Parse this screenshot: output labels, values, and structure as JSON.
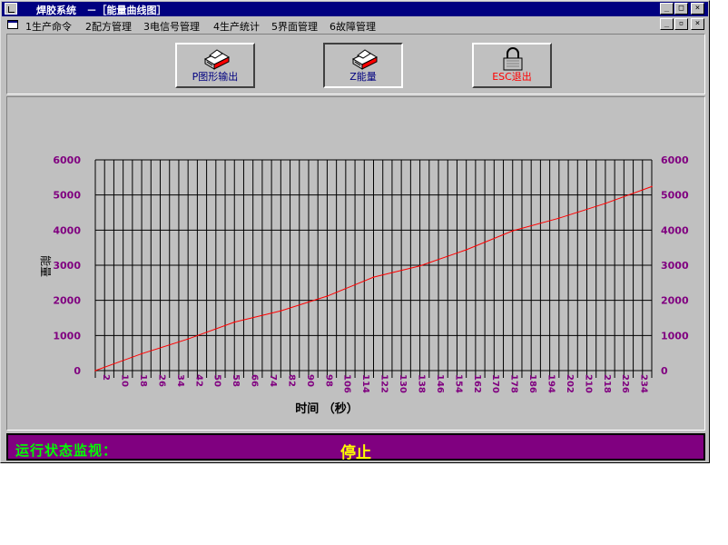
{
  "window": {
    "app_title": "焊胶系统",
    "doc_title": "－［能量曲线图］",
    "caption_buttons": [
      "_",
      "□",
      "×"
    ],
    "doc_buttons": [
      "_",
      "▫",
      "×"
    ]
  },
  "menu": [
    "1生产命令",
    "2配方管理",
    "3电信号管理",
    "4生产统计",
    "5界面管理",
    "6故障管理"
  ],
  "toolbar": {
    "buttons": [
      {
        "label": "P图形输出",
        "hotkey": "P",
        "icon": "printer-icon",
        "label_color": "#000080",
        "pressed": false
      },
      {
        "label": "Z能量",
        "hotkey": "Z",
        "icon": "printer-icon",
        "label_color": "#000080",
        "pressed": true
      },
      {
        "label": "ESC退出",
        "hotkey": "ESC",
        "icon": "lock-icon",
        "label_color": "#ff0000",
        "pressed": false
      }
    ]
  },
  "chart_data": {
    "type": "line",
    "title": "",
    "xlabel": "时间 （秒）",
    "ylabel": "能量",
    "ylim": [
      0,
      6000
    ],
    "y_ticks": [
      0,
      1000,
      2000,
      3000,
      4000,
      5000,
      6000
    ],
    "x_ticks": [
      2,
      10,
      18,
      26,
      34,
      42,
      50,
      58,
      66,
      74,
      82,
      90,
      98,
      106,
      114,
      122,
      130,
      138,
      146,
      154,
      162,
      170,
      178,
      186,
      194,
      202,
      210,
      218,
      226,
      234
    ],
    "x_range": [
      0,
      240
    ],
    "grid": true,
    "series": [
      {
        "color": "#ff0000",
        "x": [
          0,
          20,
          40,
          60,
          80,
          100,
          120,
          140,
          160,
          180,
          200,
          220,
          240
        ],
        "y": [
          0,
          480,
          900,
          1380,
          1700,
          2120,
          2660,
          2980,
          3440,
          3980,
          4340,
          4760,
          5240
        ]
      }
    ],
    "axis_color": "#800080",
    "grid_color": "#000000"
  },
  "status": {
    "label": "运行状态监视：",
    "value": "停止",
    "bar_color": "#800080",
    "label_color": "#00ff00",
    "value_color": "#ffff00"
  }
}
